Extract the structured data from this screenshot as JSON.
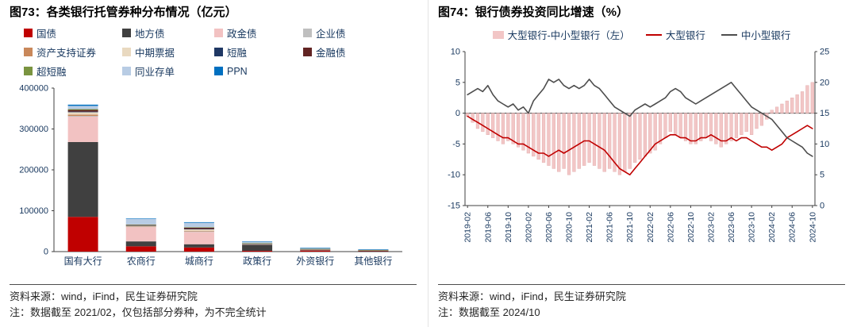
{
  "left_panel": {
    "title": "图73：各类银行托管券种分布情况（亿元）",
    "source": "资料来源：wind，iFind，民生证券研究院",
    "note": "注：数据截至 2021/02，仅包括部分券种，为不完全统计"
  },
  "right_panel": {
    "title": "图74：银行债券投资同比增速（%）",
    "source": "资料来源：wind，iFind，民生证券研究院",
    "note": "注：数据截至 2024/10"
  },
  "colors": {
    "axis": "#404040",
    "tick_text": "#17375e",
    "diff_bar": "#f2c6c6",
    "large_bank_line": "#c00000",
    "small_bank_line": "#4d4d4d"
  },
  "chart_data": [
    {
      "type": "bar",
      "subtype": "stacked",
      "title": "各类银行托管券种分布情况（亿元）",
      "categories": [
        "国有大行",
        "农商行",
        "城商行",
        "政策行",
        "外资银行",
        "其他银行"
      ],
      "series": [
        {
          "name": "国债",
          "color": "#c00000",
          "values": [
            85000,
            13000,
            10000,
            2000,
            3000,
            1500
          ]
        },
        {
          "name": "地方债",
          "color": "#404040",
          "values": [
            183000,
            12000,
            8000,
            15000,
            500,
            500
          ]
        },
        {
          "name": "政金债",
          "color": "#f2c2c2",
          "values": [
            62000,
            35000,
            30000,
            2000,
            2000,
            1500
          ]
        },
        {
          "name": "企业债",
          "color": "#bfbfbf",
          "values": [
            2000,
            1000,
            1500,
            200,
            100,
            100
          ]
        },
        {
          "name": "资产支持证券",
          "color": "#c9885a",
          "values": [
            3000,
            800,
            1500,
            200,
            200,
            100
          ]
        },
        {
          "name": "中期票据",
          "color": "#e9d9c0",
          "values": [
            6000,
            2000,
            3500,
            500,
            300,
            200
          ]
        },
        {
          "name": "短融",
          "color": "#1f3864",
          "values": [
            1500,
            500,
            1000,
            100,
            100,
            50
          ]
        },
        {
          "name": "金融债",
          "color": "#622423",
          "values": [
            4000,
            1500,
            3000,
            300,
            300,
            150
          ]
        },
        {
          "name": "超短融",
          "color": "#7a9440",
          "values": [
            2000,
            500,
            1000,
            100,
            100,
            50
          ]
        },
        {
          "name": "同业存单",
          "color": "#b8cce4",
          "values": [
            8000,
            14000,
            11000,
            4000,
            2500,
            1200
          ]
        },
        {
          "name": "PPN",
          "color": "#0070c0",
          "values": [
            3000,
            800,
            1500,
            300,
            400,
            150
          ]
        }
      ],
      "ylim": [
        0,
        400000
      ],
      "yticks": [
        0,
        100000,
        200000,
        300000,
        400000
      ],
      "grid": false,
      "legend_position": "top"
    },
    {
      "type": "combo",
      "title": "银行债券投资同比增速（%）",
      "x": [
        "2019-02",
        "2019-03",
        "2019-04",
        "2019-05",
        "2019-06",
        "2019-07",
        "2019-08",
        "2019-09",
        "2019-10",
        "2019-11",
        "2019-12",
        "2020-01",
        "2020-02",
        "2020-03",
        "2020-04",
        "2020-05",
        "2020-06",
        "2020-07",
        "2020-08",
        "2020-09",
        "2020-10",
        "2020-11",
        "2020-12",
        "2021-01",
        "2021-02",
        "2021-03",
        "2021-04",
        "2021-05",
        "2021-06",
        "2021-07",
        "2021-08",
        "2021-09",
        "2021-10",
        "2021-11",
        "2021-12",
        "2022-01",
        "2022-02",
        "2022-03",
        "2022-04",
        "2022-05",
        "2022-06",
        "2022-07",
        "2022-08",
        "2022-09",
        "2022-10",
        "2022-11",
        "2022-12",
        "2023-01",
        "2023-02",
        "2023-03",
        "2023-04",
        "2023-05",
        "2023-06",
        "2023-07",
        "2023-08",
        "2023-09",
        "2023-10",
        "2023-11",
        "2023-12",
        "2024-01",
        "2024-02",
        "2024-03",
        "2024-04",
        "2024-05",
        "2024-06",
        "2024-07",
        "2024-08",
        "2024-09",
        "2024-10"
      ],
      "xtick_every": 4,
      "bar_series": {
        "name": "大型银行-中小型银行（左）",
        "axis": "left",
        "color": "#f2c6c6",
        "values": [
          -0.5,
          -1.5,
          -2.5,
          -3,
          -3.5,
          -4,
          -4.5,
          -5,
          -4.5,
          -5,
          -5.5,
          -6,
          -6.5,
          -7,
          -7.5,
          -8,
          -8.5,
          -9,
          -9.5,
          -9,
          -10,
          -9.5,
          -9,
          -8.5,
          -8,
          -8.5,
          -9,
          -9.5,
          -9,
          -9.5,
          -10,
          -9.5,
          -9,
          -8,
          -7.5,
          -7,
          -6.5,
          -6,
          -5,
          -4,
          -3,
          -3.5,
          -4,
          -4.5,
          -5,
          -5,
          -4.5,
          -4,
          -4.5,
          -5,
          -5.5,
          -5,
          -4.5,
          -4,
          -3.5,
          -3,
          -3.5,
          -2.5,
          -2,
          -1,
          0.5,
          1,
          1.5,
          2,
          2.5,
          3,
          3.5,
          4.5,
          5
        ]
      },
      "line_series": [
        {
          "name": "大型银行",
          "axis": "right",
          "color": "#c00000",
          "values": [
            14.5,
            14,
            13.5,
            13,
            12.5,
            12,
            11.5,
            11,
            11,
            10.5,
            10,
            10,
            9.5,
            9,
            8.5,
            8.5,
            8,
            8.5,
            9,
            8.5,
            9,
            9.5,
            10,
            10.5,
            10.5,
            10,
            9.5,
            9,
            8,
            7,
            6,
            5.5,
            5,
            6,
            7,
            8,
            9,
            10,
            10.5,
            11,
            11.5,
            11.5,
            11,
            11,
            10.5,
            10.5,
            11,
            11,
            11.5,
            11,
            10.5,
            10.5,
            11,
            10.5,
            11,
            11,
            10.5,
            10,
            9.5,
            9.5,
            9,
            9.5,
            10,
            11,
            11.5,
            12,
            12.5,
            13,
            12.5
          ]
        },
        {
          "name": "中小型银行",
          "axis": "right",
          "color": "#4d4d4d",
          "values": [
            18,
            18.5,
            19,
            18.5,
            19.5,
            18,
            17,
            16.5,
            16,
            16.5,
            15.5,
            16,
            15,
            17,
            18,
            19,
            20.5,
            20,
            20.5,
            19.5,
            19,
            19.5,
            19,
            19.5,
            20.5,
            19.5,
            19,
            18,
            17,
            16,
            15.5,
            15,
            14.5,
            15.5,
            16,
            16.5,
            16,
            16.5,
            17,
            17.5,
            18.5,
            19,
            18.5,
            17.5,
            17,
            16.5,
            17,
            17.5,
            18,
            18.5,
            19,
            19.5,
            20,
            19,
            18,
            17,
            16,
            15.5,
            15,
            14.5,
            14,
            13,
            12,
            11,
            10.5,
            10,
            9.5,
            8.5,
            8
          ]
        }
      ],
      "left_ylim": [
        -15,
        10
      ],
      "left_yticks": [
        -15,
        -10,
        -5,
        0,
        5,
        10
      ],
      "right_ylim": [
        0,
        25
      ],
      "right_yticks": [
        0,
        5,
        10,
        15,
        20,
        25
      ],
      "legend_position": "top",
      "grid": false
    }
  ]
}
